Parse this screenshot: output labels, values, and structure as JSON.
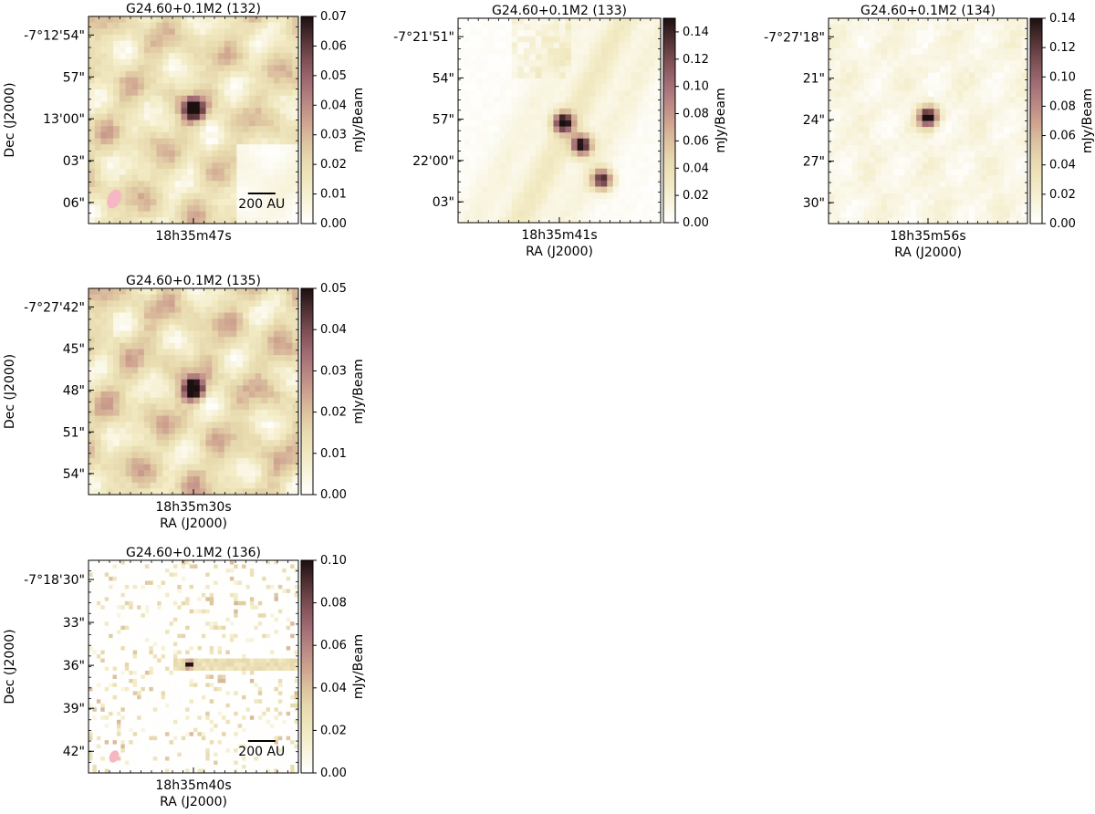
{
  "colormap": {
    "stops": [
      "#ffffff",
      "#f3ecc6",
      "#e6d7ab",
      "#cda08e",
      "#a7707a",
      "#6e4447",
      "#1c0f0f"
    ]
  },
  "beam_color": "#f7b6c4",
  "chart_data": [
    {
      "type": "heatmap",
      "title": "G24.60+0.1M2 (132)",
      "xlabel": "",
      "ylabel": "Dec (J2000)",
      "x_tick_labels": [
        "18h35m47s"
      ],
      "y_tick_labels": [
        "-7°12'54\"",
        "57\"",
        "13'00\"",
        "03\"",
        "06\""
      ],
      "colorbar_label": "mJy/Beam",
      "colorbar_ticks": [
        "0.07",
        "0.06",
        "0.05",
        "0.04",
        "0.03",
        "0.02",
        "0.01",
        "0.00"
      ],
      "colorbar_range": [
        0,
        0.07
      ],
      "scalebar_label": "200 AU",
      "has_beam": true,
      "sources": [
        {
          "rel_x": 0.5,
          "rel_y": 0.45,
          "peak": 1.0
        }
      ],
      "texture": "dense",
      "background_level": 0.42
    },
    {
      "type": "heatmap",
      "title": "G24.60+0.1M2 (133)",
      "xlabel": "RA (J2000)",
      "ylabel": "",
      "x_tick_labels": [
        "18h35m41s"
      ],
      "y_tick_labels": [
        "-7°21'51\"",
        "54\"",
        "57\"",
        "22'00\"",
        "03\""
      ],
      "colorbar_label": "mJy/Beam",
      "colorbar_ticks": [
        "0.14",
        "0.12",
        "0.10",
        "0.08",
        "0.06",
        "0.04",
        "0.02",
        "0.00"
      ],
      "colorbar_range": [
        0,
        0.15
      ],
      "scalebar_label": "",
      "has_beam": false,
      "sources": [
        {
          "rel_x": 0.52,
          "rel_y": 0.51,
          "peak": 1.0
        },
        {
          "rel_x": 0.61,
          "rel_y": 0.62,
          "peak": 1.0
        },
        {
          "rel_x": 0.71,
          "rel_y": 0.79,
          "peak": 0.9
        }
      ],
      "texture": "diagonal",
      "background_level": 0.18
    },
    {
      "type": "heatmap",
      "title": "G24.60+0.1M2 (134)",
      "xlabel": "RA (J2000)",
      "ylabel": "",
      "x_tick_labels": [
        "18h35m56s"
      ],
      "y_tick_labels": [
        "-7°27'18\"",
        "21\"",
        "24\"",
        "27\"",
        "30\""
      ],
      "colorbar_label": "mJy/Beam",
      "colorbar_ticks": [
        "0.14",
        "0.12",
        "0.10",
        "0.08",
        "0.06",
        "0.04",
        "0.02",
        "0.00"
      ],
      "colorbar_range": [
        0,
        0.14
      ],
      "scalebar_label": "",
      "has_beam": false,
      "sources": [
        {
          "rel_x": 0.5,
          "rel_y": 0.48,
          "peak": 1.0
        }
      ],
      "texture": "faint",
      "background_level": 0.1
    },
    {
      "type": "heatmap",
      "title": "G24.60+0.1M2 (135)",
      "xlabel": "RA (J2000)",
      "ylabel": "Dec (J2000)",
      "x_tick_labels": [
        "18h35m30s"
      ],
      "y_tick_labels": [
        "-7°27'42\"",
        "45\"",
        "48\"",
        "51\"",
        "54\""
      ],
      "colorbar_label": "mJy/Beam",
      "colorbar_ticks": [
        "0.05",
        "0.04",
        "0.03",
        "0.02",
        "0.01",
        "0.00"
      ],
      "colorbar_range": [
        0,
        0.05
      ],
      "scalebar_label": "",
      "has_beam": false,
      "sources": [
        {
          "rel_x": 0.5,
          "rel_y": 0.49,
          "peak": 1.0
        }
      ],
      "texture": "dense",
      "background_level": 0.46
    },
    {
      "type": "heatmap",
      "title": "G24.60+0.1M2 (136)",
      "xlabel": "RA (J2000)",
      "ylabel": "Dec (J2000)",
      "x_tick_labels": [
        "18h35m40s"
      ],
      "y_tick_labels": [
        "-7°18'30\"",
        "33\"",
        "36\"",
        "39\"",
        "42\""
      ],
      "colorbar_label": "mJy/Beam",
      "colorbar_ticks": [
        "0.10",
        "0.08",
        "0.06",
        "0.04",
        "0.02",
        "0.00"
      ],
      "colorbar_range": [
        0,
        0.1
      ],
      "scalebar_label": "200 AU",
      "has_beam": true,
      "sources": [
        {
          "rel_x": 0.48,
          "rel_y": 0.49,
          "peak": 1.0
        }
      ],
      "texture": "noise",
      "background_level": 0.2
    }
  ]
}
